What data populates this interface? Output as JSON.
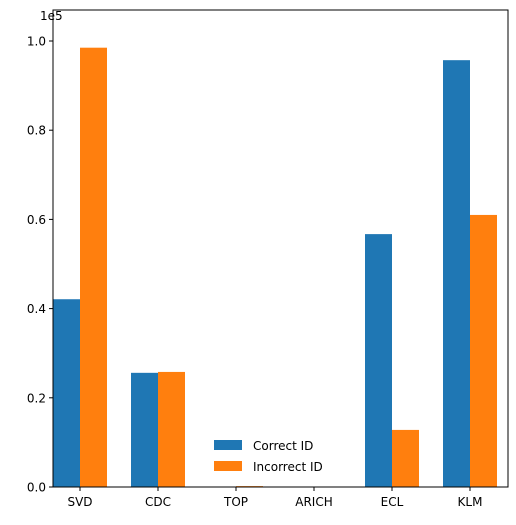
{
  "chart_data": {
    "type": "bar",
    "title": "",
    "xlabel": "",
    "ylabel": "",
    "offset_text": "1e5",
    "categories": [
      "SVD",
      "CDC",
      "TOP",
      "ARICH",
      "ECL",
      "KLM"
    ],
    "series": [
      {
        "name": "Correct ID",
        "color": "#1f77b4",
        "values": [
          0.421,
          0.256,
          0.0,
          0.0,
          0.567,
          0.957
        ]
      },
      {
        "name": "Incorrect ID",
        "color": "#ff7f0e",
        "values": [
          0.985,
          0.258,
          0.002,
          0.0,
          0.128,
          0.61
        ]
      }
    ],
    "ylim": [
      0,
      1.0
    ],
    "yticks": [
      0.0,
      0.2,
      0.4,
      0.6,
      0.8,
      1.0
    ],
    "ytick_labels": [
      "0.0",
      "0.2",
      "0.4",
      "0.6",
      "0.8",
      "1.0"
    ],
    "grid": false,
    "legend_position": "lower-center"
  }
}
